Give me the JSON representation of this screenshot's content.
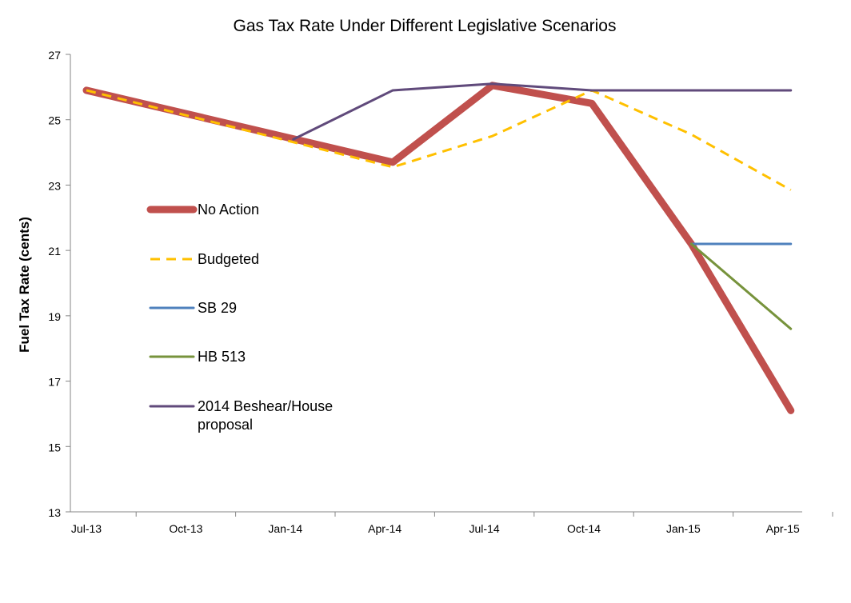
{
  "chart_data": {
    "type": "line",
    "title": "Gas Tax Rate Under Different Legislative Scenarios",
    "xlabel": "",
    "ylabel": "Fuel Tax Rate (cents)",
    "ylim": [
      13,
      27
    ],
    "yticks": [
      13,
      15,
      17,
      19,
      21,
      23,
      25,
      27
    ],
    "categories": [
      "Jul-13",
      "Oct-13",
      "Jan-14",
      "Apr-14",
      "Jul-14",
      "Oct-14",
      "Jan-15",
      "Apr-15"
    ],
    "grid": false,
    "legend_position": "left-center",
    "series": [
      {
        "name": "No Action",
        "color": "#C0504D",
        "style": "solid-thick",
        "points": [
          [
            0,
            25.9
          ],
          [
            3.08,
            23.7
          ],
          [
            4.08,
            26.05
          ],
          [
            5.08,
            25.5
          ],
          [
            6.08,
            21.2
          ],
          [
            7.08,
            16.1
          ]
        ]
      },
      {
        "name": "Budgeted",
        "color": "#FFC000",
        "style": "dashed",
        "points": [
          [
            0,
            25.9
          ],
          [
            3.08,
            23.55
          ],
          [
            4.08,
            24.5
          ],
          [
            5.08,
            25.9
          ],
          [
            6.08,
            24.55
          ],
          [
            7.08,
            22.85
          ]
        ]
      },
      {
        "name": "SB 29",
        "color": "#4F81BD",
        "style": "solid",
        "points": [
          [
            6.08,
            21.2
          ],
          [
            7.08,
            21.2
          ]
        ]
      },
      {
        "name": "HB 513",
        "color": "#77933C",
        "style": "solid",
        "points": [
          [
            6.08,
            21.2
          ],
          [
            7.08,
            18.6
          ]
        ]
      },
      {
        "name": "2014 Beshear/House proposal",
        "name_lines": [
          "2014 Beshear/House",
          "proposal"
        ],
        "color": "#604A7B",
        "style": "solid",
        "points": [
          [
            2.08,
            24.4
          ],
          [
            3.08,
            25.9
          ],
          [
            4.08,
            26.1
          ],
          [
            5.08,
            25.9
          ],
          [
            6.08,
            25.9
          ],
          [
            7.08,
            25.9
          ]
        ]
      }
    ]
  }
}
